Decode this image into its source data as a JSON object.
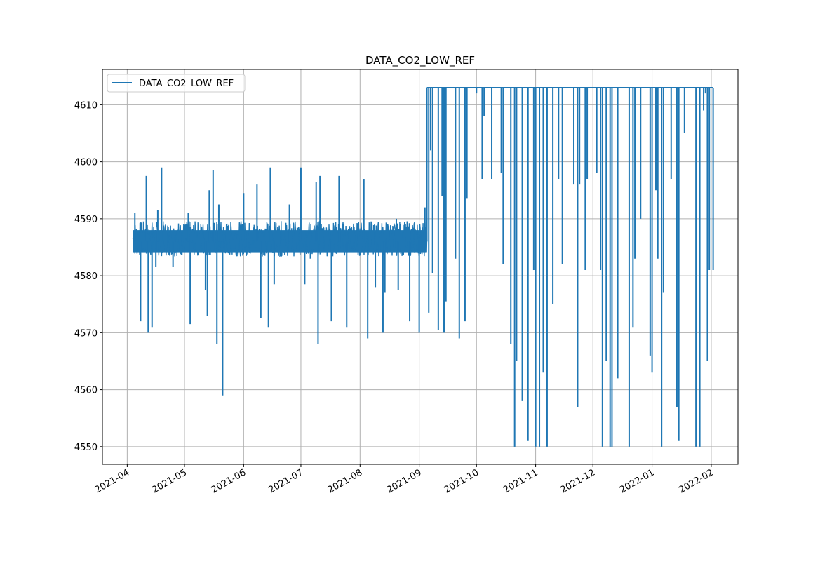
{
  "chart_data": {
    "type": "line",
    "title": "DATA_CO2_LOW_REF",
    "xlabel": "",
    "ylabel": "",
    "x_tick_labels": [
      "2021-04",
      "2021-05",
      "2021-06",
      "2021-07",
      "2021-08",
      "2021-09",
      "2021-10",
      "2021-11",
      "2021-12",
      "2022-01",
      "2022-02"
    ],
    "x_tick_dates": [
      "2021-04-01",
      "2021-05-01",
      "2021-06-01",
      "2021-07-01",
      "2021-08-01",
      "2021-09-01",
      "2021-10-01",
      "2021-11-01",
      "2021-12-01",
      "2022-01-01",
      "2022-02-01"
    ],
    "xlim": [
      "2021-03-19",
      "2022-02-15"
    ],
    "y_tick_labels": [
      "4550",
      "4560",
      "4570",
      "4580",
      "4590",
      "4600",
      "4610"
    ],
    "y_ticks": [
      4550,
      4560,
      4570,
      4580,
      4590,
      4600,
      4610
    ],
    "ylim": [
      4546.9,
      4616.2
    ],
    "grid": true,
    "legend_position": "top-left",
    "series": [
      {
        "name": "DATA_CO2_LOW_REF",
        "color": "#1f77b4",
        "regimes": [
          {
            "start": "2021-04-04",
            "end": "2021-09-05",
            "low": 4584,
            "high": 4588
          },
          {
            "start": "2021-09-05",
            "end": "2022-02-02",
            "low": 4613,
            "high": 4613
          }
        ],
        "spikes": [
          [
            "2021-04-05",
            4591
          ],
          [
            "2021-04-08",
            4572
          ],
          [
            "2021-04-11",
            4597.5
          ],
          [
            "2021-04-12",
            4570
          ],
          [
            "2021-04-14",
            4571
          ],
          [
            "2021-04-16",
            4581.5
          ],
          [
            "2021-04-17",
            4591.5
          ],
          [
            "2021-04-19",
            4599
          ],
          [
            "2021-04-25",
            4581.5
          ],
          [
            "2021-05-03",
            4591
          ],
          [
            "2021-05-04",
            4571.5
          ],
          [
            "2021-05-12",
            4577.5
          ],
          [
            "2021-05-13",
            4573
          ],
          [
            "2021-05-14",
            4595
          ],
          [
            "2021-05-16",
            4598.5
          ],
          [
            "2021-05-18",
            4568
          ],
          [
            "2021-05-19",
            4592.5
          ],
          [
            "2021-05-21",
            4559
          ],
          [
            "2021-06-01",
            4594.5
          ],
          [
            "2021-06-08",
            4596
          ],
          [
            "2021-06-10",
            4572.5
          ],
          [
            "2021-06-14",
            4571
          ],
          [
            "2021-06-15",
            4599
          ],
          [
            "2021-06-17",
            4578.5
          ],
          [
            "2021-06-25",
            4592.5
          ],
          [
            "2021-07-01",
            4599
          ],
          [
            "2021-07-03",
            4578.5
          ],
          [
            "2021-07-06",
            4583
          ],
          [
            "2021-07-09",
            4596.5
          ],
          [
            "2021-07-10",
            4568
          ],
          [
            "2021-07-11",
            4597.5
          ],
          [
            "2021-07-17",
            4572
          ],
          [
            "2021-07-21",
            4597.5
          ],
          [
            "2021-07-25",
            4571
          ],
          [
            "2021-08-03",
            4597
          ],
          [
            "2021-08-05",
            4569
          ],
          [
            "2021-08-09",
            4578
          ],
          [
            "2021-08-13",
            4570
          ],
          [
            "2021-08-14",
            4577
          ],
          [
            "2021-08-20",
            4590
          ],
          [
            "2021-08-21",
            4577.5
          ],
          [
            "2021-08-27",
            4572
          ],
          [
            "2021-09-01",
            4570
          ],
          [
            "2021-09-04",
            4592
          ],
          [
            "2021-09-05",
            4599
          ],
          [
            "2021-09-06",
            4573.5
          ],
          [
            "2021-09-07",
            4602
          ],
          [
            "2021-09-08",
            4580.5
          ],
          [
            "2021-09-11",
            4570.5
          ],
          [
            "2021-09-13",
            4594
          ],
          [
            "2021-09-14",
            4570
          ],
          [
            "2021-09-15",
            4575.5
          ],
          [
            "2021-09-20",
            4583
          ],
          [
            "2021-09-22",
            4569
          ],
          [
            "2021-09-25",
            4572
          ],
          [
            "2021-09-26",
            4593.5
          ],
          [
            "2021-10-01",
            4612
          ],
          [
            "2021-10-04",
            4597
          ],
          [
            "2021-10-05",
            4608
          ],
          [
            "2021-10-09",
            4597
          ],
          [
            "2021-10-14",
            4598
          ],
          [
            "2021-10-15",
            4582
          ],
          [
            "2021-10-19",
            4568
          ],
          [
            "2021-10-21",
            4550
          ],
          [
            "2021-10-22",
            4565
          ],
          [
            "2021-10-25",
            4558
          ],
          [
            "2021-10-28",
            4551
          ],
          [
            "2021-10-31",
            4581
          ],
          [
            "2021-11-01",
            4550
          ],
          [
            "2021-11-03",
            4550
          ],
          [
            "2021-11-05",
            4563
          ],
          [
            "2021-11-07",
            4550
          ],
          [
            "2021-11-10",
            4575
          ],
          [
            "2021-11-13",
            4597
          ],
          [
            "2021-11-15",
            4582
          ],
          [
            "2021-11-21",
            4596
          ],
          [
            "2021-11-23",
            4557
          ],
          [
            "2021-11-24",
            4596
          ],
          [
            "2021-11-27",
            4581
          ],
          [
            "2021-11-28",
            4597
          ],
          [
            "2021-12-03",
            4598
          ],
          [
            "2021-12-05",
            4581
          ],
          [
            "2021-12-06",
            4550
          ],
          [
            "2021-12-08",
            4565
          ],
          [
            "2021-12-10",
            4550
          ],
          [
            "2021-12-11",
            4550
          ],
          [
            "2021-12-14",
            4562
          ],
          [
            "2021-12-20",
            4550
          ],
          [
            "2021-12-22",
            4571
          ],
          [
            "2021-12-23",
            4583
          ],
          [
            "2021-12-26",
            4590
          ],
          [
            "2021-12-31",
            4566
          ],
          [
            "2022-01-01",
            4563
          ],
          [
            "2022-01-03",
            4595
          ],
          [
            "2022-01-04",
            4583
          ],
          [
            "2022-01-06",
            4550
          ],
          [
            "2022-01-07",
            4577
          ],
          [
            "2022-01-11",
            4597
          ],
          [
            "2022-01-14",
            4557
          ],
          [
            "2022-01-15",
            4551
          ],
          [
            "2022-01-18",
            4605
          ],
          [
            "2022-01-24",
            4550
          ],
          [
            "2022-01-26",
            4550
          ],
          [
            "2022-01-28",
            4609
          ],
          [
            "2022-02-02",
            4581
          ],
          [
            "2022-01-31",
            4581
          ],
          [
            "2022-01-30",
            4565
          ],
          [
            "2022-01-29",
            4612
          ],
          [
            "2022-02-03",
            4603
          ],
          [
            "2022-02-04",
            4560
          ],
          [
            "2022-02-07",
            4571
          ],
          [
            "2022-02-08",
            4552
          ],
          [
            "2022-02-11",
            4566
          ],
          [
            "2022-02-12",
            4605
          ],
          [
            "2022-02-13",
            4565
          ],
          [
            "2022-02-16",
            4573
          ],
          [
            "2022-02-18",
            4565
          ],
          [
            "2022-02-20",
            4603
          ],
          [
            "2022-02-22",
            4552
          ],
          [
            "2022-02-24",
            4550
          ],
          [
            "2022-02-25",
            4550
          ],
          [
            "2022-02-26",
            4610
          ]
        ]
      }
    ]
  }
}
